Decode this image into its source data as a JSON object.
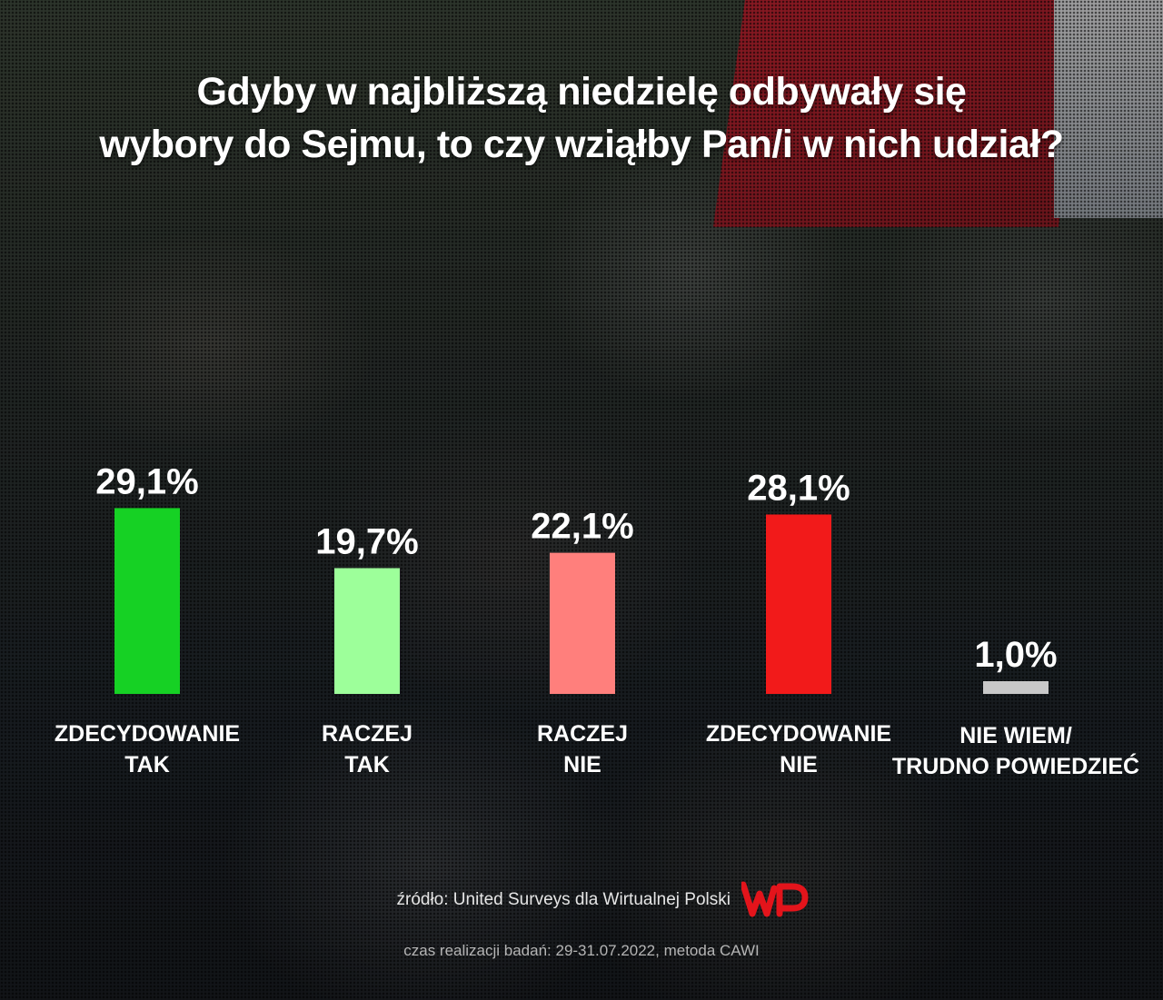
{
  "title_lines": [
    "Gdyby w najbliższą niedzielę odbywały się",
    "wybory do Sejmu, to czy wziąłby Pan/i w nich udział?"
  ],
  "chart_data": {
    "type": "bar",
    "title": "Gdyby w najbliższą niedzielę odbywały się wybory do Sejmu, to czy wziąłby Pan/i w nich udział?",
    "categories": [
      [
        "ZDECYDOWANIE",
        "TAK"
      ],
      [
        "RACZEJ",
        "TAK"
      ],
      [
        "RACZEJ",
        "NIE"
      ],
      [
        "ZDECYDOWANIE",
        "NIE"
      ],
      [
        "NIE WIEM/",
        "TRUDNO POWIEDZIEĆ"
      ]
    ],
    "values": [
      29.1,
      19.7,
      22.1,
      28.1,
      1.0
    ],
    "value_labels": [
      "29,1%",
      "19,7%",
      "22,1%",
      "28,1%",
      "1,0%"
    ],
    "colors": [
      "#16d124",
      "#9dff9a",
      "#ff7f7c",
      "#f21a1a",
      "#c8c8c8"
    ],
    "unit": "%",
    "xlabel": "",
    "ylabel": "",
    "ylim": [
      0,
      30
    ],
    "grid": false,
    "legend": "none"
  },
  "source": "źródło: United Surveys dla Wirtualnej Polski",
  "logo": {
    "name": "wp-logo",
    "text": "WP",
    "color": "#e3141b"
  },
  "method": "czas realizacji badań: 29-31.07.2022, metoda CAWI"
}
